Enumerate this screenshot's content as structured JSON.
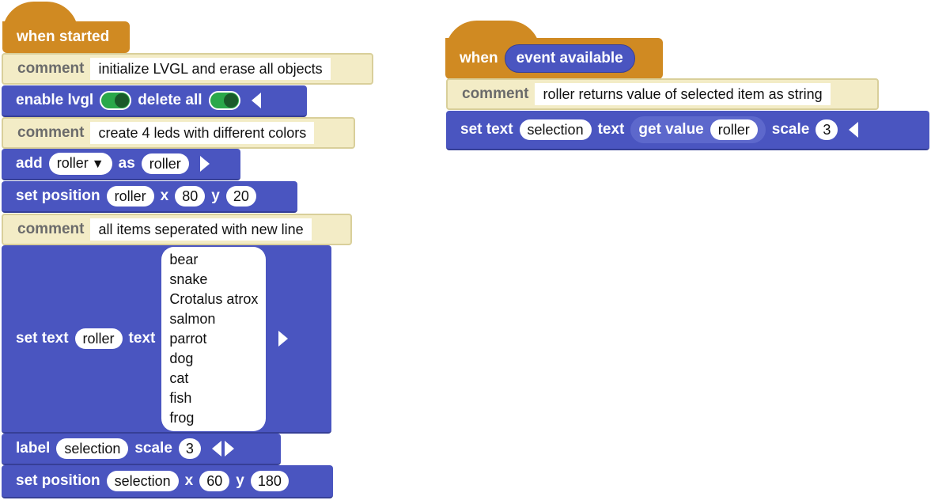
{
  "left_script": {
    "hat_label": "when started",
    "c1": {
      "kw": "comment",
      "text": "initialize LVGL and erase all objects"
    },
    "enable": {
      "kw1": "enable lvgl",
      "kw2": "delete all"
    },
    "c2": {
      "kw": "comment",
      "text": "create 4 leds with different colors"
    },
    "add": {
      "kw1": "add",
      "type": "roller",
      "dropdown_icon": "▼",
      "kw2": "as",
      "name": "roller"
    },
    "setpos1": {
      "kw": "set position",
      "name": "roller",
      "x_label": "x",
      "x": "80",
      "y_label": "y",
      "y": "20"
    },
    "c3": {
      "kw": "comment",
      "text": "all items seperated with new line"
    },
    "settext": {
      "kw1": "set text",
      "name": "roller",
      "kw2": "text",
      "lines": [
        "bear",
        "snake",
        "Crotalus atrox",
        "salmon",
        "parrot",
        "dog",
        "cat",
        "fish",
        "frog"
      ]
    },
    "label": {
      "kw": "label",
      "name": "selection",
      "kw2": "scale",
      "scale": "3"
    },
    "setpos2": {
      "kw": "set position",
      "name": "selection",
      "x_label": "x",
      "x": "60",
      "y_label": "y",
      "y": "180"
    }
  },
  "right_script": {
    "hat_kw": "when",
    "event": "event available",
    "c1": {
      "kw": "comment",
      "text": "roller returns value of selected item as string"
    },
    "settext": {
      "kw1": "set text",
      "name": "selection",
      "kw2": "text",
      "get_kw": "get value",
      "get_name": "roller",
      "kw3": "scale",
      "scale": "3"
    }
  },
  "colors": {
    "block_blue": "#4a55c0",
    "hat_orange": "#d08a22",
    "comment_bg": "#f3ecc6",
    "toggle_green": "#2aa84a"
  }
}
